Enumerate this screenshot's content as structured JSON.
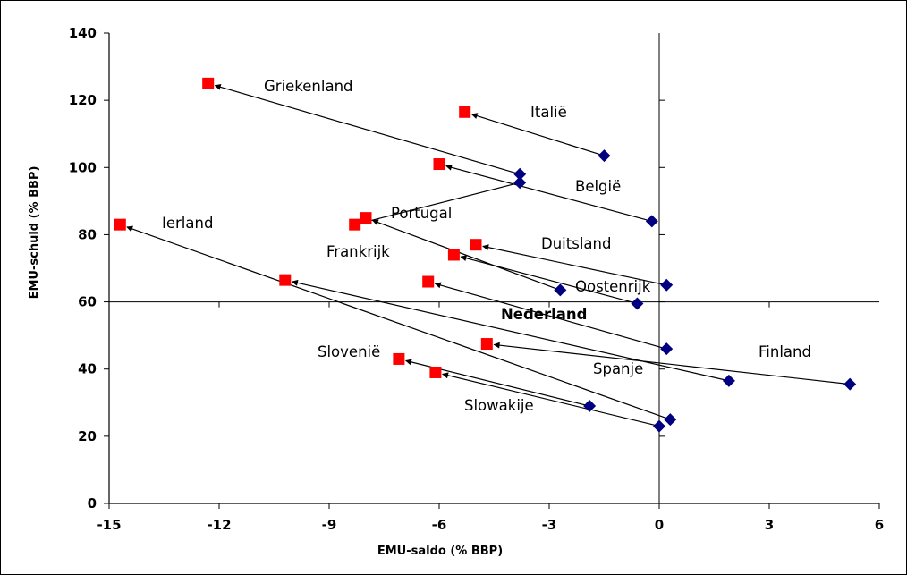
{
  "chart_data": {
    "type": "scatter",
    "xlabel": "EMU-saldo (% BBP)",
    "ylabel": "EMU-schuld (% BBP)",
    "xlim": [
      -15,
      6
    ],
    "ylim": [
      0,
      140
    ],
    "x_ticks": [
      -15,
      -12,
      -9,
      -6,
      -3,
      0,
      3,
      6
    ],
    "y_ticks": [
      0,
      20,
      40,
      60,
      80,
      100,
      120,
      140
    ],
    "x_tick_labels": [
      "-15",
      "-12",
      "-9",
      "-6",
      "-3",
      "0",
      "3",
      "6"
    ],
    "y_tick_labels": [
      "0",
      "20",
      "40",
      "60",
      "80",
      "100",
      "120",
      "140"
    ],
    "grid": false,
    "reference_lines": {
      "x": 0,
      "y": 60
    },
    "marker_colors": {
      "from": "#000080",
      "to": "#ff0000"
    },
    "countries": [
      {
        "label": "Griekenland",
        "bold": false,
        "from": [
          -3.8,
          98
        ],
        "to": [
          -12.3,
          125
        ]
      },
      {
        "label": "Italië",
        "bold": false,
        "from": [
          -1.5,
          103.5
        ],
        "to": [
          -5.3,
          116.5
        ]
      },
      {
        "label": "België",
        "bold": false,
        "from": [
          -0.2,
          84
        ],
        "to": [
          -6.0,
          101
        ]
      },
      {
        "label": "Ierland",
        "bold": false,
        "from": [
          0.3,
          25
        ],
        "to": [
          -14.7,
          83
        ]
      },
      {
        "label": "Portugal",
        "bold": false,
        "from": [
          -2.7,
          63.5
        ],
        "to": [
          -8.0,
          85
        ]
      },
      {
        "label": "Frankrijk",
        "bold": false,
        "from": [
          -3.8,
          95.5
        ],
        "to": [
          -8.3,
          83
        ]
      },
      {
        "label": "Duitsland",
        "bold": false,
        "from": [
          0.2,
          65
        ],
        "to": [
          -5.0,
          77
        ]
      },
      {
        "label": "Oostenrijk",
        "bold": false,
        "from": [
          -0.6,
          59.5
        ],
        "to": [
          -5.6,
          74
        ]
      },
      {
        "label": "Nederland",
        "bold": true,
        "from": [
          0.2,
          46
        ],
        "to": [
          -6.3,
          66
        ]
      },
      {
        "label": "Finland",
        "bold": false,
        "from": [
          5.2,
          35.5
        ],
        "to": [
          -4.7,
          47.5
        ]
      },
      {
        "label": "Spanje",
        "bold": false,
        "from": [
          1.9,
          36.5
        ],
        "to": [
          -10.2,
          66.5
        ]
      },
      {
        "label": "Slovenië",
        "bold": false,
        "from": [
          -1.9,
          29
        ],
        "to": [
          -7.1,
          43
        ]
      },
      {
        "label": "Slowakije",
        "bold": false,
        "from": [
          0,
          23
        ],
        "to": [
          -6.1,
          39
        ]
      }
    ]
  }
}
